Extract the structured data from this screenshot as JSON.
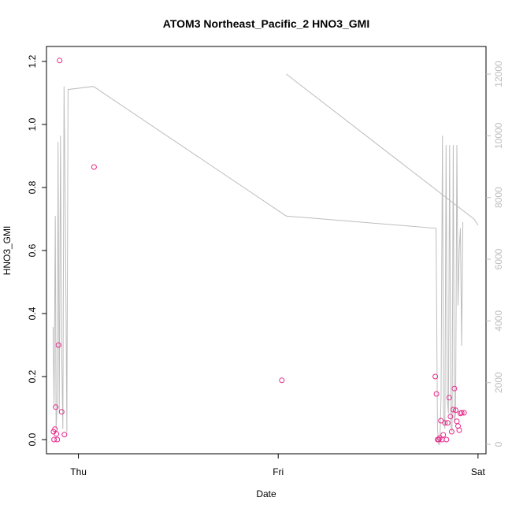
{
  "chart_data": {
    "type": "scatter",
    "title": "ATOM3 Northeast_Pacific_2 HNO3_GMI",
    "xlabel": "Date",
    "ylabel": "HNO3_GMI",
    "x_tick_labels": [
      "Thu",
      "Fri",
      "Sat"
    ],
    "x_tick_positions": [
      1.0,
      2.0,
      3.0
    ],
    "xlim": [
      0.84,
      3.04
    ],
    "ylim": [
      0.0,
      1.2
    ],
    "y_ticks": [
      0.0,
      0.2,
      0.4,
      0.6,
      0.8,
      1.0,
      1.2
    ],
    "y_tick_labels": [
      "0.0",
      "0.2",
      "0.4",
      "0.6",
      "0.8",
      "1.0",
      "1.2"
    ],
    "y2lim": [
      0,
      12000
    ],
    "y2_ticks": [
      0,
      2000,
      4000,
      6000,
      8000,
      10000,
      12000
    ],
    "y2_tick_labels": [
      "0",
      "2000",
      "4000",
      "6000",
      "8000",
      "10000",
      "12000"
    ],
    "grid": false,
    "point_color": "#e7298a",
    "line_color": "#bdbdbd",
    "series": [
      {
        "kind": "points",
        "axis": "left",
        "x": [
          0.875,
          0.878,
          0.882,
          0.886,
          0.89,
          0.894,
          0.9,
          0.906,
          0.916,
          0.93,
          1.078,
          2.018,
          2.786,
          2.792,
          2.798,
          2.803,
          2.808,
          2.814,
          2.82,
          2.826,
          2.834,
          2.842,
          2.848,
          2.856,
          2.862,
          2.868,
          2.876,
          2.882,
          2.888,
          2.894,
          2.9,
          2.906,
          2.912,
          2.918,
          2.93
        ],
        "y": [
          0.025,
          0.0,
          0.033,
          0.103,
          0.018,
          0.0,
          0.3,
          1.203,
          0.088,
          0.016,
          0.865,
          0.188,
          0.2,
          0.145,
          0.0,
          0.0,
          0.005,
          0.06,
          0.0,
          0.015,
          0.053,
          0.0,
          0.053,
          0.133,
          0.073,
          0.025,
          0.095,
          0.162,
          0.093,
          0.058,
          0.043,
          0.03,
          0.083,
          0.085,
          0.085
        ]
      },
      {
        "kind": "line",
        "axis": "right",
        "x": [
          0.873,
          0.878,
          0.884,
          0.888,
          0.894,
          0.898,
          0.904,
          0.91,
          0.916,
          0.922,
          0.928,
          0.935,
          0.942,
          0.948,
          1.075,
          2.04,
          2.79,
          2.797,
          2.803,
          2.809,
          2.815,
          2.822,
          2.828,
          2.834,
          2.84,
          2.846,
          2.852,
          2.858,
          2.864,
          2.87,
          2.876,
          2.882,
          2.888,
          2.894,
          2.9,
          2.906,
          2.912,
          2.918,
          2.924
        ],
        "y": [
          3800,
          1200,
          7400,
          500,
          1300,
          9800,
          1000,
          10000,
          3000,
          500,
          11600,
          7000,
          400,
          11500,
          11600,
          7400,
          7000,
          500,
          0,
          0,
          1500,
          10000,
          1000,
          500,
          9700,
          1500,
          1000,
          9700,
          600,
          400,
          9700,
          700,
          1000,
          9700,
          4500,
          6300,
          7000,
          3200,
          7200
        ]
      },
      {
        "kind": "line",
        "axis": "right",
        "x": [
          2.04,
          2.98,
          3.0
        ],
        "y": [
          12000,
          7300,
          7100
        ]
      }
    ]
  }
}
